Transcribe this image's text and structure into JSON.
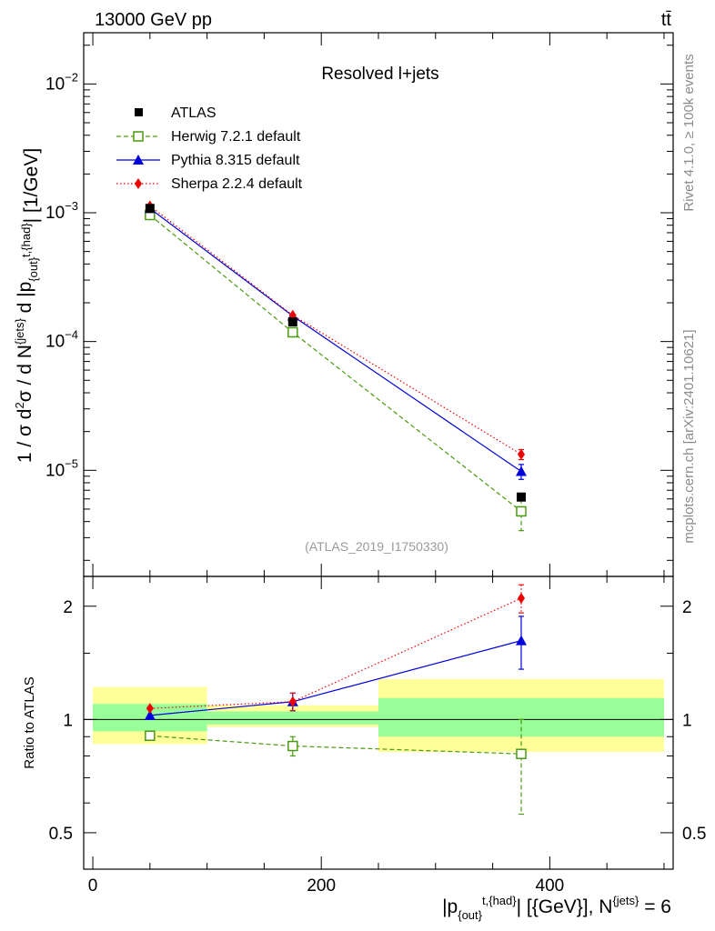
{
  "header": {
    "energy_label": "13000 GeV pp",
    "process_label": "tt̄"
  },
  "side_labels": {
    "rivet": "Rivet 4.1.0, ≥ 100k events",
    "mcplots": "mcplots.cern.ch [arXiv:2401.10621]"
  },
  "chart_data": [
    {
      "panel": "main",
      "type": "line",
      "title": "Resolved l+jets",
      "watermark": "(ATLAS_2019_I1750330)",
      "ylabel": "1 / σ d²σ / d N^{jets} d |p_{out}^{t,{had}}| [1/GeV]",
      "yscale": "log",
      "ylim": [
        1.5e-06,
        0.025
      ],
      "xlim": [
        -8,
        508
      ],
      "y_ticks": [
        {
          "mantissa": "10",
          "exp": "−2"
        },
        {
          "mantissa": "10",
          "exp": "−3"
        },
        {
          "mantissa": "10",
          "exp": "−4"
        },
        {
          "mantissa": "10",
          "exp": "−5"
        }
      ],
      "y_tick_values": [
        0.01,
        0.001,
        0.0001,
        1e-05
      ],
      "legend_position": "top-left",
      "series": [
        {
          "name": "ATLAS",
          "color": "#000000",
          "marker": "square",
          "style": "none",
          "x": [
            50,
            175,
            375
          ],
          "y": [
            0.00108,
            0.000142,
            6.2e-06
          ]
        },
        {
          "name": "Herwig 7.2.1 default",
          "color": "#4a9a10",
          "marker": "open-square",
          "style": "dashed",
          "x": [
            50,
            175,
            375
          ],
          "y": [
            0.00096,
            0.000118,
            4.8e-06
          ],
          "err_low": [
            0,
            0,
            1.4e-06
          ],
          "err_high": [
            0,
            0,
            1.2e-06
          ]
        },
        {
          "name": "Pythia 8.315 default",
          "color": "#0000dd",
          "marker": "triangle",
          "style": "solid",
          "x": [
            50,
            175,
            375
          ],
          "y": [
            0.00108,
            0.000158,
            9.8e-06
          ],
          "err_low": [
            0,
            0,
            1.3e-06
          ],
          "err_high": [
            0,
            0,
            1.3e-06
          ]
        },
        {
          "name": "Sherpa 2.2.4 default",
          "color": "#ee0000",
          "marker": "diamond",
          "style": "dotted",
          "x": [
            50,
            175,
            375
          ],
          "y": [
            0.00113,
            0.00016,
            1.33e-05
          ],
          "err_low": [
            0,
            0,
            1.2e-06
          ],
          "err_high": [
            0,
            0,
            1.2e-06
          ]
        }
      ]
    },
    {
      "panel": "ratio",
      "type": "line",
      "ylabel": "Ratio to ATLAS",
      "xlabel": "|p_{out}^{t,{had}}| [{GeV}], N^{jets} = 6",
      "yscale": "log",
      "ylim": [
        0.4,
        2.4
      ],
      "xlim": [
        -8,
        508
      ],
      "x_ticks": [
        0,
        200,
        400
      ],
      "x_tick_labels": [
        "0",
        "200",
        "400"
      ],
      "y_ticks": [
        2,
        1,
        0.5
      ],
      "y_tick_labels": [
        "2",
        "1",
        "0.5"
      ],
      "bands": [
        {
          "x0": 0,
          "x1": 100,
          "yellow": [
            0.86,
            1.22
          ],
          "green": [
            0.93,
            1.1
          ]
        },
        {
          "x0": 100,
          "x1": 250,
          "yellow": [
            0.955,
            1.09
          ],
          "green": [
            0.97,
            1.05
          ]
        },
        {
          "x0": 250,
          "x1": 500,
          "yellow": [
            0.82,
            1.28
          ],
          "green": [
            0.9,
            1.14
          ]
        }
      ],
      "series": [
        {
          "name": "Herwig 7.2.1 default",
          "color": "#4a9a10",
          "marker": "open-square",
          "style": "dashed",
          "x": [
            50,
            175,
            375
          ],
          "y": [
            0.905,
            0.85,
            0.81
          ],
          "err_low": [
            0,
            0.05,
            0.25
          ],
          "err_high": [
            0,
            0.05,
            0.19
          ]
        },
        {
          "name": "Pythia 8.315 default",
          "color": "#0000dd",
          "marker": "triangle",
          "style": "solid",
          "x": [
            50,
            175,
            375
          ],
          "y": [
            1.025,
            1.115,
            1.62
          ],
          "err_low": [
            0,
            0.06,
            0.26
          ],
          "err_high": [
            0,
            0.06,
            0.26
          ]
        },
        {
          "name": "Sherpa 2.2.4 default",
          "color": "#ee0000",
          "marker": "diamond",
          "style": "dotted",
          "x": [
            50,
            175,
            375
          ],
          "y": [
            1.07,
            1.115,
            2.1
          ],
          "err_low": [
            0,
            0.06,
            0.18
          ],
          "err_high": [
            0,
            0.06,
            0.18
          ]
        }
      ]
    }
  ]
}
